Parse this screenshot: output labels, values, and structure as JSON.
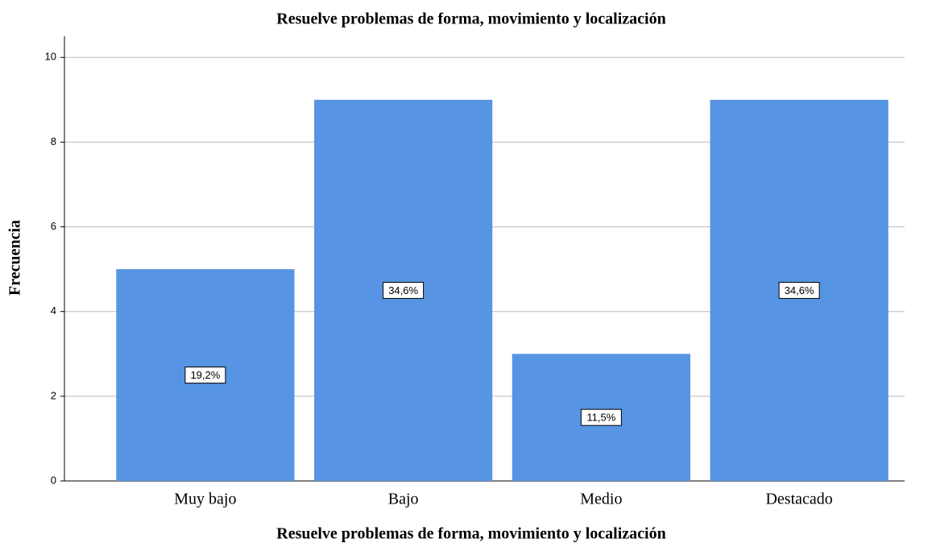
{
  "chart_data": {
    "type": "bar",
    "title": "Resuelve problemas de forma, movimiento y localización",
    "x_label": "Resuelve problemas de forma, movimiento y localización",
    "y_label": "Frecuencia",
    "categories": [
      "Muy bajo",
      "Bajo",
      "Medio",
      "Destacado"
    ],
    "values": [
      5,
      9,
      3,
      9
    ],
    "percent_labels": [
      "19,2%",
      "34,6%",
      "11,5%",
      "34,6%"
    ],
    "color": "#5794e3",
    "ylim": [
      0,
      10.5
    ],
    "yticks": [
      0,
      2,
      4,
      6,
      8,
      10
    ],
    "grid": true
  }
}
